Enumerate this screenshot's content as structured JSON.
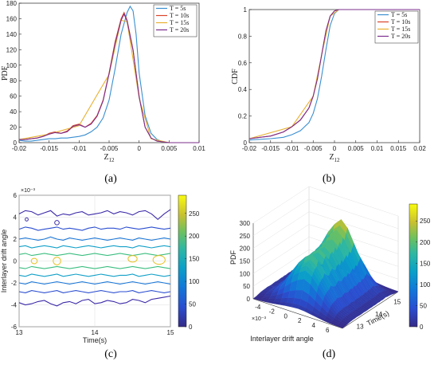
{
  "chart_data": [
    {
      "id": "a",
      "type": "line",
      "panel_label": "(a)",
      "xlabel": "Z12",
      "ylabel": "PDF",
      "xlim": [
        -0.02,
        0.01
      ],
      "ylim": [
        0,
        180
      ],
      "xticks": [
        "-0.02",
        "-0.015",
        "-0.01",
        "-0.005",
        "0",
        "0.005",
        "0.01"
      ],
      "yticks": [
        "0",
        "20",
        "40",
        "60",
        "80",
        "100",
        "120",
        "140",
        "160",
        "180"
      ],
      "legend_position": "top-right",
      "series": [
        {
          "name": "T = 5s",
          "color": "#3a8fd1",
          "x": [
            -0.02,
            -0.019,
            -0.018,
            -0.017,
            -0.016,
            -0.015,
            -0.014,
            -0.013,
            -0.012,
            -0.011,
            -0.01,
            -0.009,
            -0.008,
            -0.007,
            -0.006,
            -0.005,
            -0.004,
            -0.003,
            -0.002,
            -0.0015,
            -0.001,
            -0.0005,
            0,
            0.001,
            0.002,
            0.003,
            0.004,
            0.005,
            0.006,
            0.008,
            0.01
          ],
          "y": [
            3,
            2,
            2,
            3,
            4,
            5,
            5,
            6,
            6,
            7,
            8,
            10,
            14,
            20,
            32,
            55,
            95,
            140,
            168,
            176,
            170,
            140,
            90,
            35,
            12,
            4,
            1,
            0,
            0,
            0,
            0
          ]
        },
        {
          "name": "T = 10s",
          "color": "#d9452a",
          "x": [
            -0.02,
            -0.019,
            -0.018,
            -0.017,
            -0.016,
            -0.015,
            -0.014,
            -0.013,
            -0.012,
            -0.011,
            -0.01,
            -0.009,
            -0.008,
            -0.007,
            -0.006,
            -0.005,
            -0.004,
            -0.003,
            -0.0025,
            -0.002,
            -0.001,
            0,
            0.001,
            0.002,
            0.003,
            0.004,
            0.005,
            0.006,
            0.008,
            0.01
          ],
          "y": [
            4,
            4,
            5,
            6,
            8,
            12,
            14,
            12,
            15,
            22,
            24,
            20,
            25,
            35,
            55,
            90,
            130,
            160,
            168,
            158,
            120,
            60,
            20,
            6,
            2,
            1,
            0,
            0,
            0,
            0
          ]
        },
        {
          "name": "T = 15s",
          "color": "#e8b030",
          "x": [
            -0.02,
            -0.015,
            -0.01,
            -0.005,
            -0.003,
            -0.002,
            0,
            0.002,
            0.005,
            0.01
          ],
          "y": [
            4,
            11,
            22,
            88,
            158,
            156,
            58,
            5,
            0,
            0
          ]
        },
        {
          "name": "T = 20s",
          "color": "#7b2f8e",
          "x": [
            -0.02,
            -0.019,
            -0.018,
            -0.017,
            -0.016,
            -0.015,
            -0.014,
            -0.013,
            -0.012,
            -0.011,
            -0.01,
            -0.009,
            -0.008,
            -0.007,
            -0.006,
            -0.005,
            -0.004,
            -0.003,
            -0.0025,
            -0.002,
            -0.001,
            0,
            0.001,
            0.002,
            0.003,
            0.004,
            0.005,
            0.006,
            0.008,
            0.01
          ],
          "y": [
            4,
            4,
            5,
            6,
            8,
            11,
            13,
            12,
            14,
            21,
            23,
            20,
            24,
            34,
            54,
            89,
            128,
            158,
            166,
            157,
            119,
            59,
            20,
            6,
            2,
            1,
            0,
            0,
            0,
            0
          ]
        }
      ]
    },
    {
      "id": "b",
      "type": "line",
      "panel_label": "(b)",
      "xlabel": "Z12",
      "ylabel": "CDF",
      "xlim": [
        -0.02,
        0.02
      ],
      "ylim": [
        0,
        1
      ],
      "xticks": [
        "-0.02",
        "-0.015",
        "-0.01",
        "-0.005",
        "0",
        "0.005",
        "0.01",
        "0.015",
        "0.02"
      ],
      "yticks": [
        "0",
        "0.2",
        "0.4",
        "0.6",
        "0.8",
        "1"
      ],
      "legend_position": "top-right",
      "series": [
        {
          "name": "T = 5s",
          "color": "#3a8fd1",
          "x": [
            -0.02,
            -0.015,
            -0.012,
            -0.01,
            -0.008,
            -0.006,
            -0.005,
            -0.004,
            -0.003,
            -0.002,
            -0.001,
            0,
            0.001,
            0.002,
            0.005,
            0.02
          ],
          "y": [
            0.02,
            0.03,
            0.04,
            0.06,
            0.09,
            0.15,
            0.22,
            0.33,
            0.5,
            0.7,
            0.88,
            0.97,
            1.0,
            1.0,
            1.0,
            1.0
          ]
        },
        {
          "name": "T = 10s",
          "color": "#d9452a",
          "x": [
            -0.02,
            -0.015,
            -0.012,
            -0.01,
            -0.008,
            -0.006,
            -0.005,
            -0.004,
            -0.003,
            -0.002,
            -0.001,
            0,
            0.001,
            0.002,
            0.005,
            0.02
          ],
          "y": [
            0.03,
            0.05,
            0.08,
            0.12,
            0.17,
            0.26,
            0.35,
            0.48,
            0.66,
            0.84,
            0.95,
            0.99,
            1.0,
            1.0,
            1.0,
            1.0
          ]
        },
        {
          "name": "T = 15s",
          "color": "#e8b030",
          "x": [
            -0.02,
            -0.01,
            -0.005,
            -0.003,
            -0.001,
            0.001,
            0.005,
            0.02
          ],
          "y": [
            0.03,
            0.12,
            0.35,
            0.66,
            0.95,
            1.0,
            1.0,
            1.0
          ]
        },
        {
          "name": "T = 20s",
          "color": "#7b2f8e",
          "x": [
            -0.02,
            -0.015,
            -0.012,
            -0.01,
            -0.008,
            -0.006,
            -0.005,
            -0.004,
            -0.003,
            -0.002,
            -0.001,
            0,
            0.001,
            0.002,
            0.005,
            0.02
          ],
          "y": [
            0.03,
            0.05,
            0.08,
            0.12,
            0.17,
            0.26,
            0.35,
            0.48,
            0.66,
            0.84,
            0.95,
            0.99,
            1.0,
            1.0,
            1.0,
            1.0
          ]
        }
      ]
    },
    {
      "id": "c",
      "type": "heatmap",
      "panel_label": "(c)",
      "xlabel": "Time(s)",
      "ylabel": "Interlayer drift angle",
      "y_exponent": "×10⁻³",
      "xlim": [
        13,
        15
      ],
      "ylim": [
        -6,
        6
      ],
      "xticks": [
        "13",
        "14",
        "15"
      ],
      "yticks": [
        "-6",
        "-4",
        "-2",
        "0",
        "2",
        "4",
        "6"
      ],
      "colorbar_ticks": [
        "0",
        "50",
        "100",
        "150",
        "200",
        "250"
      ],
      "colorbar_range": [
        0,
        290
      ],
      "contours": [
        {
          "level": 10,
          "color": "#3b2aa8",
          "y": [
            4.3,
            4.6,
            4.5,
            4.2,
            4.4,
            4.6,
            4.1,
            4.3,
            4.2,
            4.4,
            4.5,
            4.2,
            4.3,
            4.4,
            4.6,
            4.3,
            4.5,
            4.4,
            4.2,
            4.5,
            4.6,
            4.3,
            3.8,
            4.3,
            4.7
          ]
        },
        {
          "level": 40,
          "color": "#2b4ed0",
          "y": [
            2.9,
            3.1,
            3.0,
            2.8,
            2.9,
            3.0,
            3.1,
            2.9,
            3.0,
            2.9,
            2.8,
            3.0,
            3.1,
            2.9,
            3.0,
            3.0,
            2.9,
            3.1,
            3.0,
            2.9,
            3.0,
            3.1,
            3.0,
            2.9,
            3.0
          ]
        },
        {
          "level": 70,
          "color": "#1c78d8",
          "y": [
            2.0,
            2.1,
            2.0,
            1.9,
            2.0,
            2.2,
            2.0,
            1.9,
            2.1,
            2.0,
            1.9,
            2.0,
            2.1,
            2.0,
            1.9,
            2.0,
            2.1,
            2.0,
            1.9,
            2.1,
            2.0,
            1.9,
            2.0,
            2.1,
            2.0
          ]
        },
        {
          "level": 100,
          "color": "#12a0c8",
          "y": [
            1.3,
            1.4,
            1.2,
            1.3,
            1.4,
            1.3,
            1.2,
            1.4,
            1.3,
            1.2,
            1.3,
            1.4,
            1.3,
            1.2,
            1.3,
            1.4,
            1.3,
            1.3,
            1.2,
            1.4,
            1.3,
            1.2,
            1.3,
            1.4,
            1.3
          ]
        },
        {
          "level": 150,
          "color": "#3cbe80",
          "y": [
            0.6,
            0.7,
            0.5,
            0.6,
            0.7,
            0.6,
            0.5,
            0.6,
            0.7,
            0.6,
            0.5,
            0.6,
            0.7,
            0.6,
            0.5,
            0.6,
            0.7,
            0.6,
            0.5,
            0.6,
            0.7,
            0.6,
            0.5,
            0.6,
            0.7
          ]
        },
        {
          "level": 150,
          "color": "#3cbe80",
          "y": [
            -0.6,
            -0.7,
            -0.5,
            -0.6,
            -0.7,
            -0.6,
            -0.5,
            -0.6,
            -0.7,
            -0.6,
            -0.5,
            -0.6,
            -0.7,
            -0.6,
            -0.5,
            -0.6,
            -0.7,
            -0.6,
            -0.5,
            -0.6,
            -0.7,
            -0.6,
            -0.5,
            -0.6,
            -0.7
          ]
        },
        {
          "level": 100,
          "color": "#12a0c8",
          "y": [
            -1.3,
            -1.4,
            -1.2,
            -1.3,
            -1.4,
            -1.3,
            -1.2,
            -1.4,
            -1.3,
            -1.2,
            -1.3,
            -1.4,
            -1.3,
            -1.2,
            -1.3,
            -1.4,
            -1.3,
            -1.3,
            -1.2,
            -1.4,
            -1.3,
            -1.2,
            -1.3,
            -1.4,
            -1.3
          ]
        },
        {
          "level": 70,
          "color": "#1c78d8",
          "y": [
            -2.0,
            -2.1,
            -1.9,
            -2.0,
            -2.1,
            -2.0,
            -1.9,
            -2.0,
            -2.1,
            -2.0,
            -1.9,
            -2.0,
            -2.1,
            -2.0,
            -1.9,
            -2.0,
            -2.1,
            -2.0,
            -1.9,
            -2.0,
            -2.1,
            -2.0,
            -1.9,
            -2.0,
            -2.1
          ]
        },
        {
          "level": 40,
          "color": "#2b4ed0",
          "y": [
            -2.8,
            -2.9,
            -2.7,
            -2.8,
            -2.9,
            -2.8,
            -2.7,
            -2.9,
            -2.8,
            -2.7,
            -2.8,
            -2.9,
            -2.8,
            -2.7,
            -2.8,
            -2.9,
            -2.8,
            -2.8,
            -2.7,
            -2.9,
            -2.8,
            -2.7,
            -2.8,
            -2.9,
            -2.8
          ]
        },
        {
          "level": 10,
          "color": "#3b2aa8",
          "y": [
            -3.8,
            -4.0,
            -3.9,
            -3.7,
            -3.6,
            -3.9,
            -4.1,
            -3.8,
            -3.7,
            -3.9,
            -3.6,
            -3.5,
            -3.9,
            -3.8,
            -3.6,
            -3.7,
            -3.9,
            -3.8,
            -3.5,
            -3.6,
            -3.8,
            -3.5,
            -3.4,
            -3.3,
            -3.2
          ]
        }
      ],
      "blobs": [
        {
          "color": "#e8c020",
          "x": 13.5,
          "y": 0.0,
          "rx": 0.05,
          "ry": 0.35
        },
        {
          "color": "#e8c020",
          "x": 13.2,
          "y": 0.0,
          "rx": 0.04,
          "ry": 0.25
        },
        {
          "color": "#e8c020",
          "x": 14.5,
          "y": 0.2,
          "rx": 0.06,
          "ry": 0.3
        },
        {
          "color": "#e8c020",
          "x": 14.85,
          "y": 0.1,
          "rx": 0.08,
          "ry": 0.4
        },
        {
          "color": "#3b2aa8",
          "x": 13.1,
          "y": 3.8,
          "rx": 0.02,
          "ry": 0.15
        },
        {
          "color": "#3b2aa8",
          "x": 13.5,
          "y": 3.5,
          "rx": 0.03,
          "ry": 0.2
        }
      ]
    },
    {
      "id": "d",
      "type": "area",
      "panel_label": "(d)",
      "xlabel": "Interlayer drift angle",
      "ylabel": "PDF",
      "zlabel": "Time(s)",
      "x_exponent": "×10⁻³",
      "zlim": [
        0,
        300
      ],
      "zticks": [
        "0",
        "50",
        "100",
        "150",
        "200",
        "250",
        "300"
      ],
      "xticks": [
        "-4",
        "-2",
        "0",
        "2",
        "4",
        "6"
      ],
      "timeticks": [
        "13",
        "14",
        "15"
      ],
      "colorbar_ticks": [
        "0",
        "50",
        "100",
        "150",
        "200",
        "250"
      ],
      "colorbar_range": [
        0,
        290
      ],
      "ridge_profile": [
        20,
        30,
        50,
        80,
        120,
        150,
        165,
        175,
        180,
        200,
        185,
        175,
        170,
        190,
        200,
        185,
        175,
        195,
        200,
        185,
        210,
        190,
        205,
        220,
        200,
        230,
        215,
        240,
        260,
        220,
        200,
        180,
        140,
        90,
        50,
        30,
        20
      ],
      "drift_profile": [
        0.05,
        0.1,
        0.2,
        0.35,
        0.55,
        0.75,
        0.9,
        1.0,
        0.9,
        0.7,
        0.5,
        0.3,
        0.15,
        0.08,
        0.04
      ]
    }
  ]
}
